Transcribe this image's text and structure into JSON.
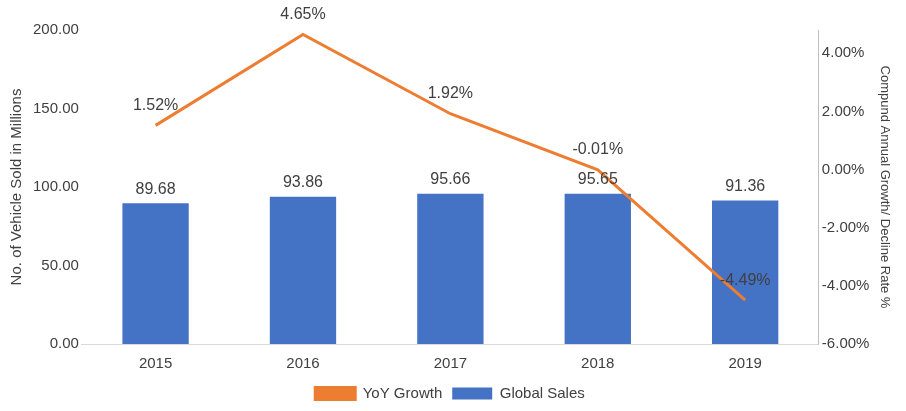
{
  "chart_data": {
    "type": "bar",
    "categories": [
      "2015",
      "2016",
      "2017",
      "2018",
      "2019"
    ],
    "series": [
      {
        "name": "Global Sales",
        "type": "bar",
        "color": "#4472c4",
        "values": [
          89.68,
          93.86,
          95.66,
          95.65,
          91.36
        ]
      },
      {
        "name": "YoY Growth",
        "type": "line",
        "color": "#ed7d31",
        "axis": "y2",
        "values": [
          1.52,
          4.65,
          1.92,
          -0.01,
          -4.49
        ],
        "value_labels": [
          "1.52%",
          "4.65%",
          "1.92%",
          "-0.01%",
          "-4.49%"
        ]
      }
    ],
    "ylabel": "No. of Vehicle Sold in Millions",
    "y2label": "Compund Annual Growth/ Decline Rate %",
    "ylim": [
      0,
      200
    ],
    "yticks": [
      {
        "value": 0,
        "label": "0.00"
      },
      {
        "value": 50,
        "label": "50.00"
      },
      {
        "value": 100,
        "label": "100.00"
      },
      {
        "value": 150,
        "label": "150.00"
      },
      {
        "value": 200,
        "label": "200.00"
      }
    ],
    "y2lim": [
      -6,
      4.8
    ],
    "y2ticks": [
      {
        "value": -6,
        "label": "-6.00%"
      },
      {
        "value": -4,
        "label": "-4.00%"
      },
      {
        "value": -2,
        "label": "-2.00%"
      },
      {
        "value": 0,
        "label": "0.00%"
      },
      {
        "value": 2,
        "label": "2.00%"
      },
      {
        "value": 4,
        "label": "4.00%"
      }
    ],
    "legend": "bottom",
    "data_labels": true,
    "grid": false
  }
}
